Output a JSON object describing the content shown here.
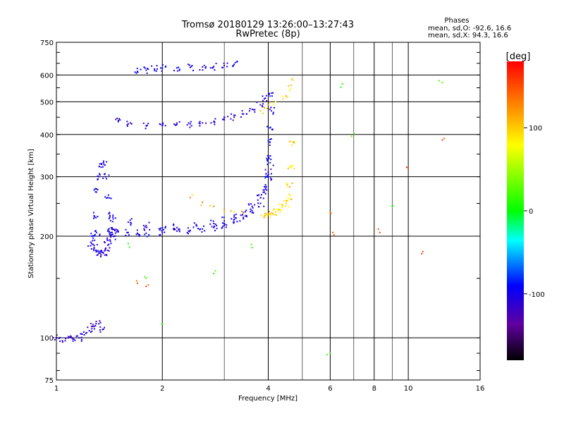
{
  "chart_data": {
    "type": "scatter",
    "title": "Tromsø 20180129 13:26:00–13:27:43",
    "subtitle": "RwPretec (8p)",
    "xlabel": "Frequency [MHz]",
    "ylabel": "Stationary phase Virtual Height [km]",
    "xscale": "log",
    "yscale": "log",
    "xlim": [
      1,
      16
    ],
    "ylim": [
      75,
      750
    ],
    "xticks": [
      1,
      2,
      4,
      6,
      8,
      10,
      16
    ],
    "xminor": [
      3,
      5,
      7,
      9
    ],
    "yticks": [
      75,
      100,
      200,
      300,
      400,
      500,
      600,
      750
    ],
    "grid": true,
    "phases_header": "Phases",
    "stats": [
      "mean, sd,O: -92.6, 16.6",
      "mean, sd,X:  94.3, 16.6"
    ],
    "colorbar": {
      "label": "[deg]",
      "range": [
        -180,
        180
      ],
      "ticks": [
        100,
        0,
        -100
      ],
      "colors": [
        "#ff0000",
        "#ff8000",
        "#ffff00",
        "#00ff00",
        "#00ffff",
        "#0000ff",
        "#6000a0",
        "#000000"
      ]
    },
    "series": [
      {
        "phase": -110,
        "x": [
          1.0,
          1.04,
          1.08,
          1.12,
          1.16,
          1.2,
          1.24,
          1.28,
          1.32,
          1.36
        ],
        "y": [
          100,
          98,
          100,
          99,
          100,
          102,
          105,
          108,
          110,
          106
        ]
      },
      {
        "phase": -100,
        "x": [
          1.26,
          1.28,
          1.3,
          1.32,
          1.34,
          1.36,
          1.38,
          1.4,
          1.42,
          1.44,
          1.46
        ],
        "y": [
          200,
          230,
          270,
          300,
          320,
          330,
          300,
          260,
          230,
          210,
          200
        ]
      },
      {
        "phase": -105,
        "x": [
          1.26,
          1.28,
          1.3,
          1.32,
          1.34,
          1.36,
          1.38,
          1.4,
          1.42,
          1.44
        ],
        "y": [
          190,
          185,
          180,
          178,
          176,
          178,
          182,
          188,
          195,
          205
        ]
      },
      {
        "phase": -100,
        "x": [
          1.3,
          1.4,
          1.5,
          1.6,
          1.7,
          1.8,
          2.0,
          2.2,
          2.4,
          2.6,
          2.8,
          3.0,
          3.2,
          3.4,
          3.6,
          3.8,
          3.9,
          4.0,
          4.05
        ],
        "y": [
          205,
          207,
          206,
          205,
          204,
          204,
          205,
          207,
          208,
          210,
          212,
          215,
          220,
          225,
          235,
          250,
          270,
          300,
          330
        ]
      },
      {
        "phase": -105,
        "x": [
          1.45,
          1.6,
          1.8,
          2.0,
          2.2,
          2.5,
          2.8,
          3.0,
          3.2,
          3.4,
          3.6,
          3.8,
          3.9,
          4.0
        ],
        "y": [
          225,
          220,
          215,
          212,
          212,
          215,
          218,
          222,
          228,
          235,
          245,
          260,
          280,
          310
        ]
      },
      {
        "phase": 110,
        "x": [
          3.9,
          4.0,
          4.1,
          4.2,
          4.3,
          4.4,
          4.5,
          4.55,
          4.6,
          4.65,
          4.7
        ],
        "y": [
          230,
          232,
          234,
          236,
          240,
          245,
          250,
          260,
          280,
          320,
          380
        ]
      },
      {
        "phase": 120,
        "x": [
          2.4,
          2.6,
          2.8,
          3.0,
          3.2,
          3.4
        ],
        "y": [
          260,
          252,
          245,
          240,
          236,
          234
        ]
      },
      {
        "phase": -110,
        "x": [
          1.5,
          1.6,
          1.8,
          2.0,
          2.2,
          2.4,
          2.6,
          2.8,
          3.0,
          3.2,
          3.4,
          3.6,
          3.8,
          3.9
        ],
        "y": [
          440,
          430,
          425,
          425,
          428,
          430,
          433,
          437,
          442,
          450,
          460,
          475,
          490,
          510
        ]
      },
      {
        "phase": -100,
        "x": [
          1.7,
          1.8,
          1.9,
          2.0,
          2.2,
          2.4,
          2.6,
          2.8,
          3.0,
          3.2
        ],
        "y": [
          615,
          620,
          625,
          628,
          630,
          632,
          634,
          636,
          640,
          645
        ]
      },
      {
        "phase": 115,
        "x": [
          3.8,
          3.9,
          4.0,
          4.2,
          4.4,
          4.5,
          4.6,
          4.65,
          4.7
        ],
        "y": [
          470,
          480,
          490,
          500,
          510,
          520,
          540,
          560,
          580
        ]
      },
      {
        "phase": -95,
        "x": [
          4.0,
          4.02,
          4.04,
          4.06,
          4.08,
          4.1
        ],
        "y": [
          300,
          340,
          380,
          420,
          470,
          520
        ]
      },
      {
        "phase": 20,
        "x": [
          1.6,
          1.8,
          2.0,
          2.8,
          3.6,
          6.0,
          6.5,
          6.9,
          9.0,
          12.5
        ],
        "y": [
          190,
          150,
          110,
          155,
          185,
          90,
          565,
          395,
          245,
          570
        ]
      },
      {
        "phase": 150,
        "x": [
          1.7,
          1.8,
          6.0,
          6.1,
          8.3,
          9.9,
          11.0,
          12.5
        ],
        "y": [
          145,
          142,
          235,
          205,
          205,
          320,
          180,
          385
        ]
      }
    ]
  }
}
